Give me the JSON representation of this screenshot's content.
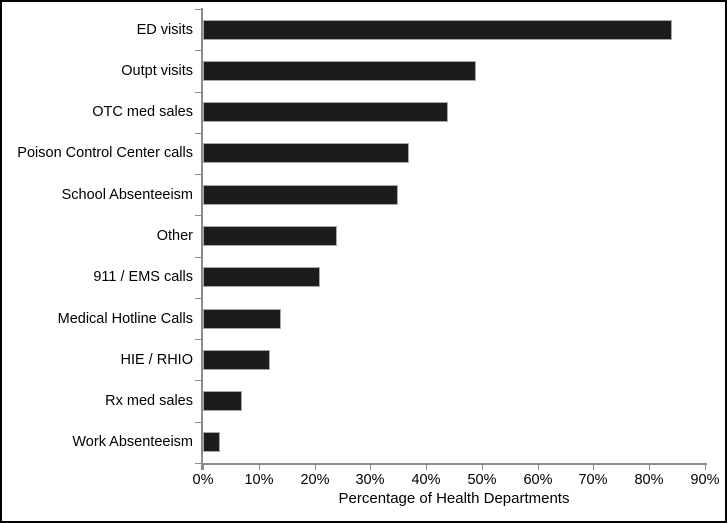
{
  "chart_data": {
    "type": "bar",
    "orientation": "horizontal",
    "title": "",
    "xlabel": "Percentage of Health Departments",
    "ylabel": "",
    "categories": [
      "ED visits",
      "Outpt visits",
      "OTC med sales",
      "Poison Control Center calls",
      "School Absenteeism",
      "Other",
      "911 / EMS calls",
      "Medical Hotline Calls",
      "HIE / RHIO",
      "Rx med sales",
      "Work Absenteeism"
    ],
    "values": [
      84,
      49,
      44,
      37,
      35,
      24,
      21,
      14,
      12,
      7,
      3
    ],
    "xlim": [
      0,
      90
    ],
    "xtick_step": 10,
    "xtick_labels": [
      "0%",
      "10%",
      "20%",
      "30%",
      "40%",
      "50%",
      "60%",
      "70%",
      "80%",
      "90%"
    ],
    "grid": false,
    "legend": false,
    "colors": {
      "bar": "#1c1c1c",
      "bar_border": "#a8a8a8",
      "axis": "#8c8c8c",
      "text": "#000000",
      "background": "#ffffff",
      "frame_border": "#000000"
    }
  }
}
